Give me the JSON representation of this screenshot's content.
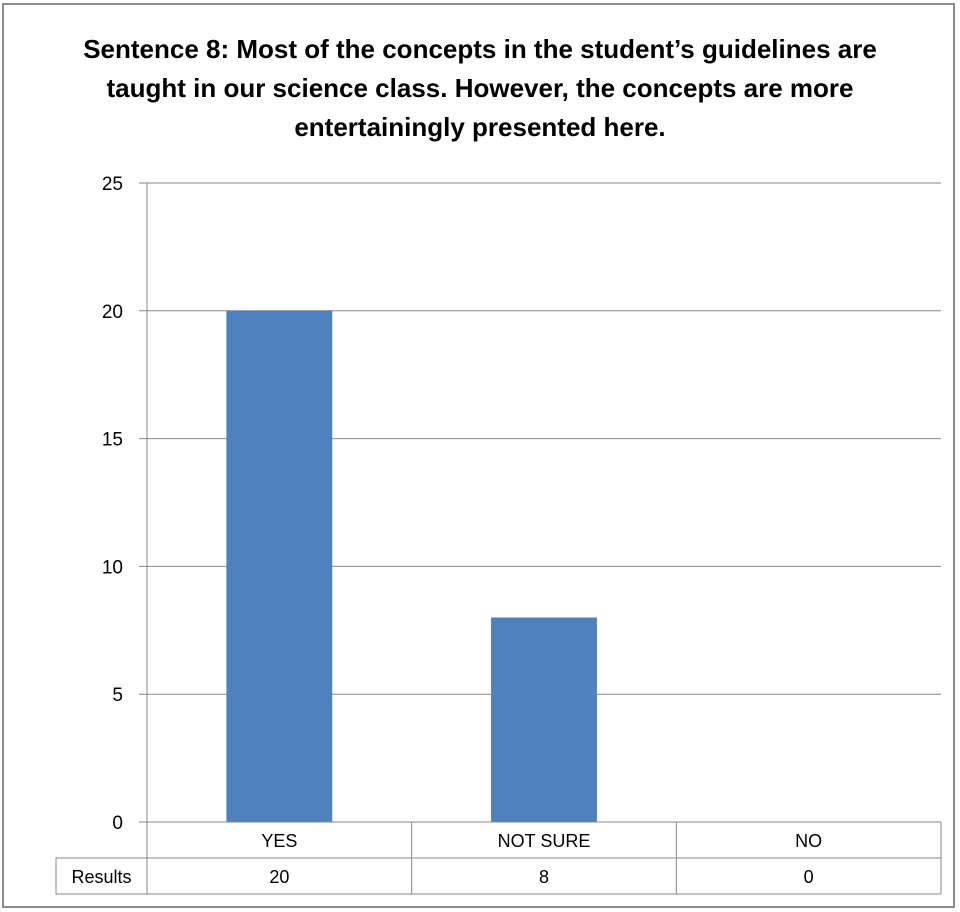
{
  "chart_data": {
    "type": "bar",
    "title": "Sentence 8: Most of the concepts in the student’s guidelines are taught in our science class. However, the concepts are more entertainingly presented here.",
    "categories": [
      "YES",
      "NOT SURE",
      "NO"
    ],
    "series": [
      {
        "name": "Results",
        "values": [
          20,
          8,
          0
        ]
      }
    ],
    "ylim": [
      0,
      25
    ],
    "yticks": [
      0,
      5,
      10,
      15,
      20,
      25
    ],
    "grid": true,
    "data_table": true,
    "legend": "none",
    "bar_color": "#4f81bd"
  }
}
